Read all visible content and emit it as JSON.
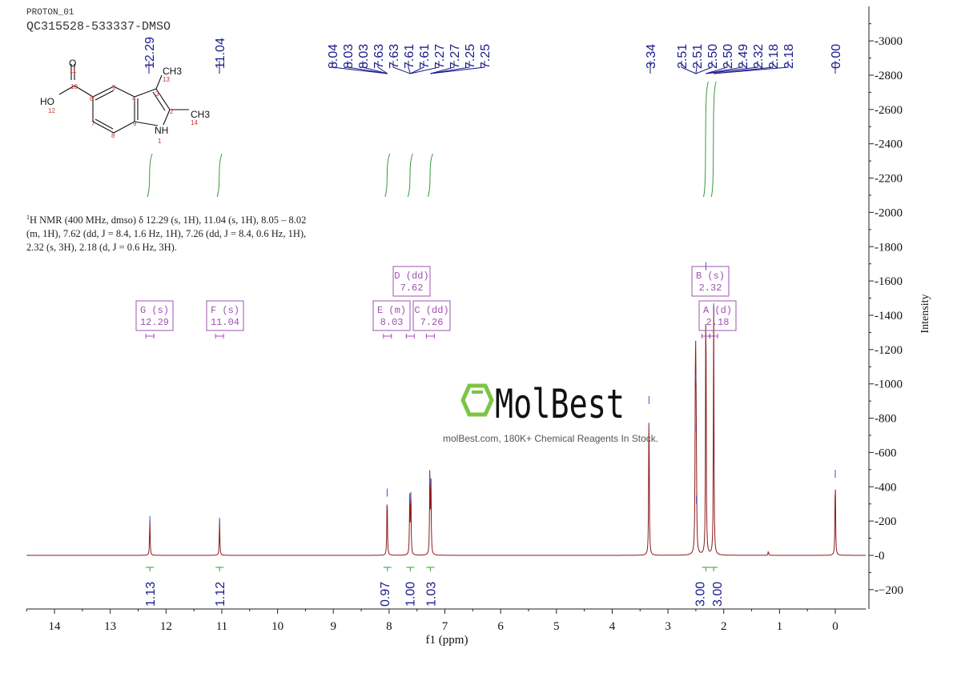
{
  "header": {
    "experiment": "PROTON_01",
    "sample": "QC315528-533337-DMSO"
  },
  "structure": {
    "labels": {
      "o": "O",
      "ho": "HO",
      "ch3_a": "CH3",
      "ch3_b": "CH3",
      "nh": "NH"
    },
    "numbers": [
      "1",
      "2",
      "3",
      "4",
      "5",
      "6",
      "7",
      "8",
      "9",
      "10",
      "11",
      "12",
      "13",
      "14"
    ]
  },
  "description": {
    "prefix": "1",
    "text": "H NMR (400 MHz, dmso) δ 12.29 (s, 1H), 11.04 (s, 1H), 8.05 – 8.02 (m, 1H), 7.62 (dd, J = 8.4, 1.6 Hz, 1H), 7.26 (dd, J = 8.4, 0.6 Hz, 1H), 2.32 (s, 3H), 2.18 (d, J = 0.6 Hz, 3H)."
  },
  "watermark": {
    "brand": "MolBest",
    "tagline": "molBest.com, 180K+ Chemical Reagents In Stock.",
    "logo_color": "#7dc443"
  },
  "colors": {
    "spectrum": "#8b1a1a",
    "peak_label": "#1a1a8c",
    "integral": "#3a9a3a",
    "multiplet": "#a050b0"
  },
  "chart_data": {
    "type": "line",
    "xlabel": "f1 (ppm)",
    "ylabel": "Intensity",
    "xlim": [
      14.5,
      -0.55
    ],
    "ylim": [
      -300,
      3100
    ],
    "x_ticks": [
      14,
      13,
      12,
      11,
      10,
      9,
      8,
      7,
      6,
      5,
      4,
      3,
      2,
      1,
      0
    ],
    "y_ticks": [
      -200,
      0,
      200,
      400,
      600,
      800,
      1000,
      1200,
      1400,
      1600,
      1800,
      2000,
      2200,
      2400,
      2600,
      2800,
      3000
    ],
    "peaks": [
      {
        "ppm": 12.29,
        "intensity": 220
      },
      {
        "ppm": 11.04,
        "intensity": 210
      },
      {
        "ppm": 8.035,
        "intensity": 380
      },
      {
        "ppm": 7.63,
        "intensity": 340
      },
      {
        "ppm": 7.61,
        "intensity": 360
      },
      {
        "ppm": 7.27,
        "intensity": 460
      },
      {
        "ppm": 7.25,
        "intensity": 440
      },
      {
        "ppm": 3.34,
        "intensity": 920
      },
      {
        "ppm": 2.51,
        "intensity": 760
      },
      {
        "ppm": 2.5,
        "intensity": 1050
      },
      {
        "ppm": 2.49,
        "intensity": 340
      },
      {
        "ppm": 2.32,
        "intensity": 1700
      },
      {
        "ppm": 2.18,
        "intensity": 1460
      },
      {
        "ppm": 1.2,
        "intensity": 25
      },
      {
        "ppm": 0.0,
        "intensity": 490
      }
    ],
    "peak_label_groups": [
      {
        "labels": [
          "8.04",
          "8.03",
          "8.03",
          "7.63",
          "7.63",
          "7.61",
          "7.61",
          "7.27",
          "7.27",
          "7.25",
          "7.25"
        ],
        "targets": [
          8.03,
          7.62,
          7.26
        ]
      },
      {
        "labels": [
          "3.34"
        ],
        "targets": [
          3.34
        ]
      },
      {
        "labels": [
          "2.51",
          "2.51",
          "2.50",
          "2.50",
          "2.49",
          "2.32",
          "2.18",
          "2.18"
        ],
        "targets": [
          2.5,
          2.32,
          2.18
        ]
      },
      {
        "labels": [
          "0.00"
        ],
        "targets": [
          0.0
        ]
      },
      {
        "labels": [
          "12.29"
        ],
        "targets": [
          12.29
        ]
      },
      {
        "labels": [
          "11.04"
        ],
        "targets": [
          11.04
        ]
      }
    ],
    "integrals": [
      {
        "ppm": 12.29,
        "value": "1.13"
      },
      {
        "ppm": 11.04,
        "value": "1.12"
      },
      {
        "ppm": 8.03,
        "value": "0.97"
      },
      {
        "ppm": 7.62,
        "value": "1.00"
      },
      {
        "ppm": 7.26,
        "value": "1.03"
      },
      {
        "ppm": 2.32,
        "value": "3.00"
      },
      {
        "ppm": 2.18,
        "value": "3.00"
      }
    ],
    "multiplets": [
      {
        "id": "G",
        "type": "(s)",
        "shift": "12.29"
      },
      {
        "id": "F",
        "type": "(s)",
        "shift": "11.04"
      },
      {
        "id": "E",
        "type": "(m)",
        "shift": "8.03"
      },
      {
        "id": "D",
        "type": "(dd)",
        "shift": "7.62"
      },
      {
        "id": "C",
        "type": "(dd)",
        "shift": "7.26"
      },
      {
        "id": "B",
        "type": "(s)",
        "shift": "2.32"
      },
      {
        "id": "A",
        "type": "(d)",
        "shift": "2.18"
      }
    ]
  }
}
